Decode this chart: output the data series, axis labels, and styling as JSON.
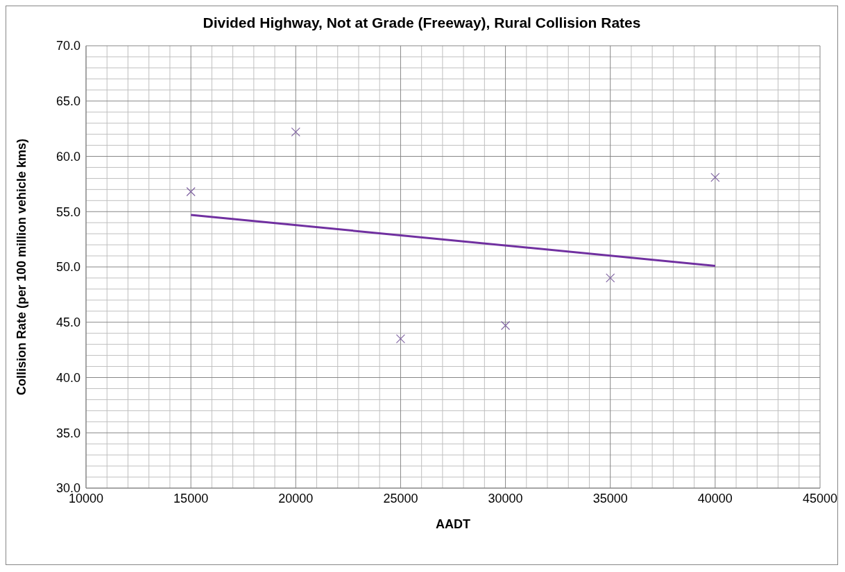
{
  "chart_data": {
    "type": "scatter",
    "title": "Divided Highway, Not at Grade (Freeway), Rural Collision Rates",
    "xlabel": "AADT",
    "ylabel": "Collision Rate (per 100 million vehicle kms)",
    "x": [
      15000,
      20000,
      25000,
      30000,
      35000,
      40000
    ],
    "series": [
      {
        "color": "#8064a2",
        "marker": "cross",
        "values": [
          56.8,
          62.2,
          43.5,
          44.7,
          49.0,
          58.1
        ]
      },
      {
        "type": "line",
        "color": "#7030a0",
        "marker": "none",
        "line_style": "solid",
        "x": [
          15000,
          40000
        ],
        "values": [
          54.7,
          50.1
        ]
      }
    ],
    "xlim": [
      10000,
      45000
    ],
    "xticks": [
      10000,
      15000,
      20000,
      25000,
      30000,
      35000,
      40000,
      45000
    ],
    "ylim": [
      30,
      70
    ],
    "yticks": [
      {
        "value": 30,
        "label": "30.0"
      },
      {
        "value": 35,
        "label": "35.0"
      },
      {
        "value": 40,
        "label": "40.0"
      },
      {
        "value": 45,
        "label": "45.0"
      },
      {
        "value": 50,
        "label": "50.0"
      },
      {
        "value": 55,
        "label": "55.0"
      },
      {
        "value": 60,
        "label": "60.0"
      },
      {
        "value": 65,
        "label": "65.0"
      },
      {
        "value": 70,
        "label": "70.0"
      }
    ],
    "grid": true,
    "legend": false
  }
}
